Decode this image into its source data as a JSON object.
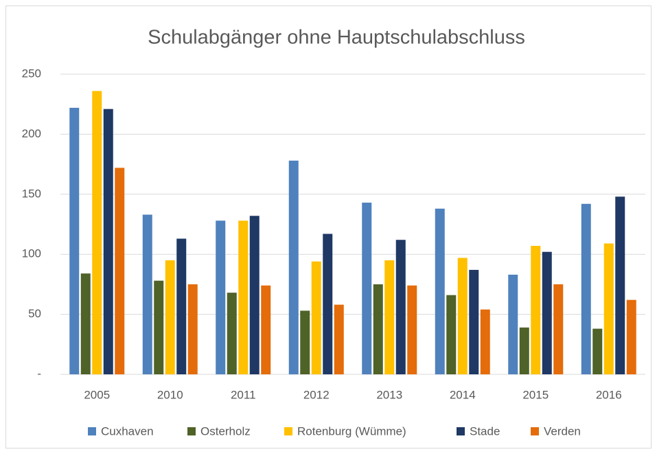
{
  "chart_data": {
    "type": "bar",
    "title": "Schulabgänger ohne Hauptschulabschluss",
    "categories": [
      "2005",
      "2010",
      "2011",
      "2012",
      "2013",
      "2014",
      "2015",
      "2016"
    ],
    "series": [
      {
        "name": "Cuxhaven",
        "color": "#4f81bd",
        "values": [
          222,
          133,
          128,
          178,
          143,
          138,
          83,
          142
        ]
      },
      {
        "name": "Osterholz",
        "color": "#4f6228",
        "values": [
          84,
          78,
          68,
          53,
          75,
          66,
          39,
          38
        ]
      },
      {
        "name": "Rotenburg (Wümme)",
        "color": "#ffc000",
        "values": [
          236,
          95,
          128,
          94,
          95,
          97,
          107,
          109
        ]
      },
      {
        "name": "Stade",
        "color": "#1f3864",
        "values": [
          221,
          113,
          132,
          117,
          112,
          87,
          102,
          148
        ]
      },
      {
        "name": "Verden",
        "color": "#e46c0a",
        "values": [
          172,
          75,
          74,
          58,
          74,
          54,
          75,
          62
        ]
      }
    ],
    "ylim": [
      0,
      250
    ],
    "yticks": [
      {
        "value": 0,
        "label": "-"
      },
      50,
      100,
      150,
      200,
      250
    ],
    "grid": true,
    "legend": "bottom"
  }
}
